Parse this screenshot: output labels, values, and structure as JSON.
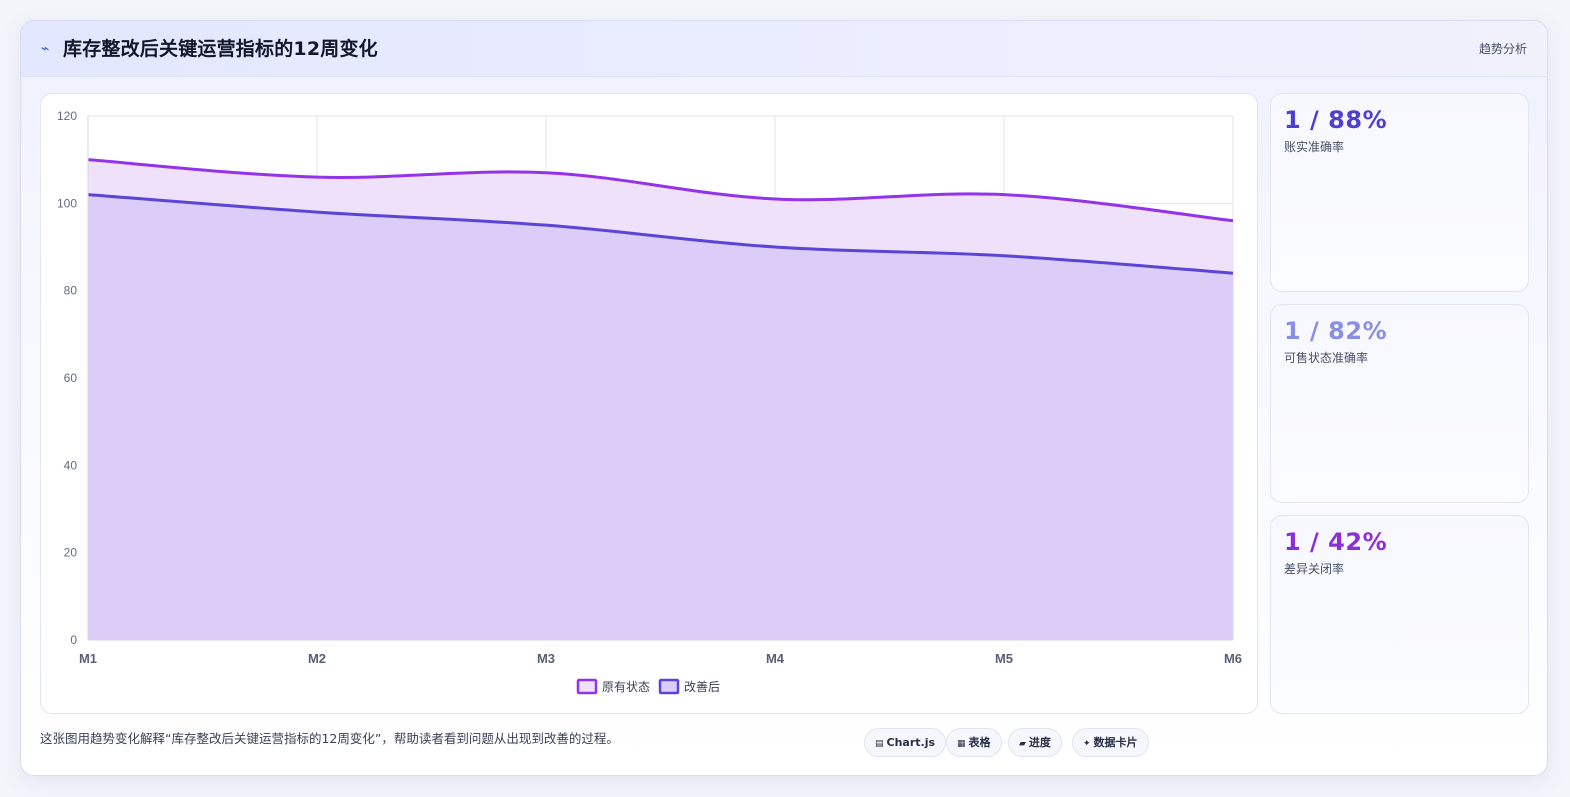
{
  "header": {
    "icon": "trend-icon",
    "title": "库存整改后关键运营指标的12周变化",
    "tag": "趋势分析"
  },
  "chart_data": {
    "type": "area",
    "categories": [
      "M1",
      "M2",
      "M3",
      "M4",
      "M5",
      "M6"
    ],
    "ylim": [
      0,
      120
    ],
    "yticks": [
      0,
      20,
      40,
      60,
      80,
      100,
      120
    ],
    "grid": true,
    "legend_position": "bottom-center",
    "series": [
      {
        "name": "原有状态",
        "values": [
          110,
          106,
          107,
          101,
          102,
          96
        ],
        "color": "#9333ea",
        "fill": "#efe1fa"
      },
      {
        "name": "改善后",
        "values": [
          102,
          98,
          95,
          90,
          88,
          84
        ],
        "color": "#5b45d6",
        "fill": "#dccdf8"
      }
    ]
  },
  "metrics": [
    {
      "value": "1 / 88%",
      "label": "账实准确率",
      "color": "#4f3fd1"
    },
    {
      "value": "1 / 82%",
      "label": "可售状态准确率",
      "color": "#8a8fe3"
    },
    {
      "value": "1 / 42%",
      "label": "差异关闭率",
      "color": "#8b2fd6"
    }
  ],
  "footer": {
    "note": "这张图用趋势变化解释“库存整改后关键运营指标的12周变化”，帮助读者看到问题从出现到改善的过程。",
    "chips": [
      {
        "icon": "chart-icon",
        "glyph": "▤",
        "label": "Chart.js"
      },
      {
        "icon": "table-icon",
        "glyph": "▦",
        "label": "表格"
      },
      {
        "icon": "progress-icon",
        "glyph": "▰",
        "label": "进度"
      },
      {
        "icon": "sparkle-icon",
        "glyph": "✦",
        "label": "数据卡片"
      }
    ]
  }
}
